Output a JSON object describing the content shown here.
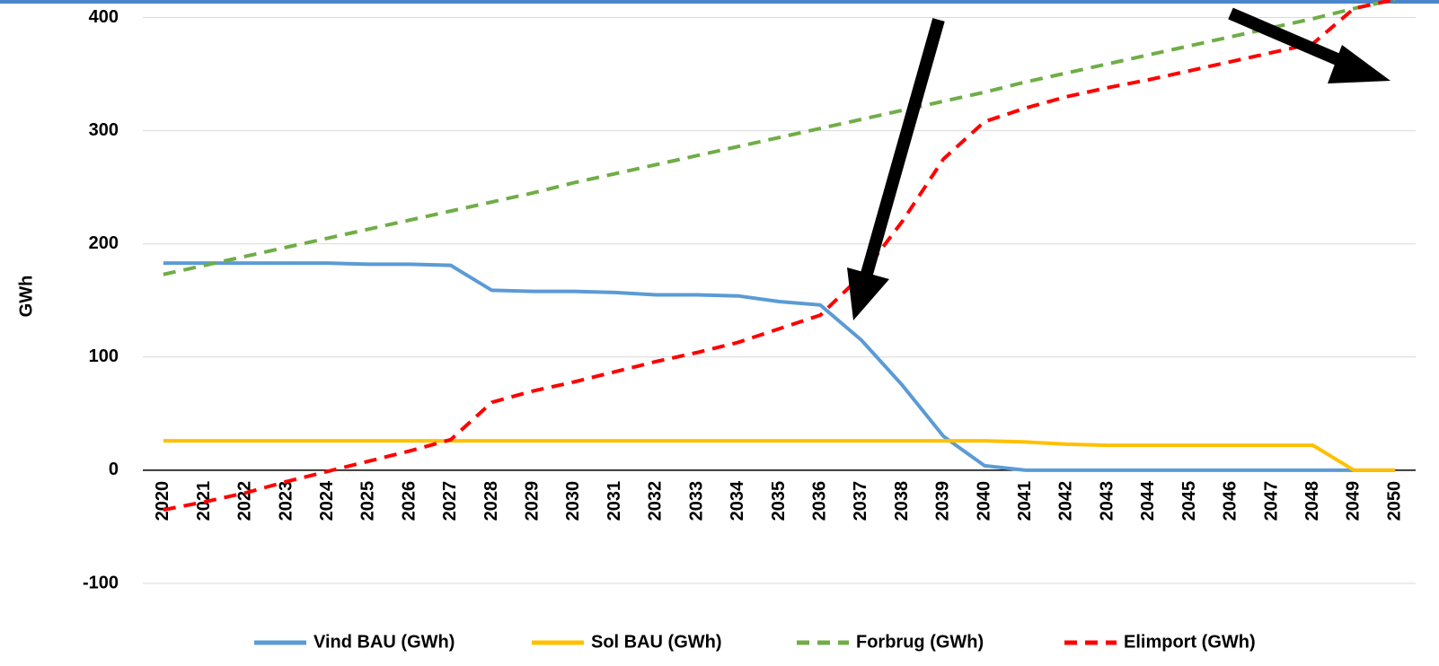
{
  "chart_data": {
    "type": "line",
    "y_label": "GWh",
    "categories": [
      "2020",
      "2021",
      "2022",
      "2023",
      "2024",
      "2025",
      "2026",
      "2027",
      "2028",
      "2029",
      "2030",
      "2031",
      "2032",
      "2033",
      "2034",
      "2035",
      "2036",
      "2037",
      "2038",
      "2039",
      "2040",
      "2041",
      "2042",
      "2043",
      "2044",
      "2045",
      "2046",
      "2047",
      "2048",
      "2049",
      "2050"
    ],
    "series": [
      {
        "name": "Vind BAU (GWh)",
        "color": "#5b9bd5",
        "dashed": false,
        "values": [
          183,
          183,
          183,
          183,
          183,
          182,
          182,
          181,
          159,
          158,
          158,
          157,
          155,
          155,
          154,
          149,
          146,
          115,
          75,
          30,
          4,
          0,
          0,
          0,
          0,
          0,
          0,
          0,
          0,
          0,
          0
        ]
      },
      {
        "name": "Sol BAU (GWh)",
        "color": "#ffc000",
        "dashed": false,
        "values": [
          26,
          26,
          26,
          26,
          26,
          26,
          26,
          26,
          26,
          26,
          26,
          26,
          26,
          26,
          26,
          26,
          26,
          26,
          26,
          26,
          26,
          25,
          23,
          22,
          22,
          22,
          22,
          22,
          22,
          0,
          0
        ]
      },
      {
        "name": "Forbrug (GWh)",
        "color": "#70ad47",
        "dashed": true,
        "values": [
          173,
          181,
          189,
          197,
          205,
          213,
          221,
          229,
          237,
          245,
          254,
          262,
          270,
          278,
          286,
          294,
          302,
          310,
          318,
          326,
          334,
          343,
          351,
          359,
          367,
          375,
          383,
          391,
          399,
          408,
          416
        ]
      },
      {
        "name": "Elimport (GWh)",
        "color": "#ff0000",
        "dashed": true,
        "values": [
          -35,
          -28,
          -20,
          -10,
          -1,
          8,
          17,
          27,
          60,
          70,
          78,
          87,
          96,
          104,
          113,
          125,
          137,
          172,
          220,
          275,
          308,
          320,
          330,
          338,
          345,
          353,
          361,
          369,
          377,
          408,
          416
        ]
      }
    ],
    "ylim": [
      -100,
      500
    ],
    "yticks": [
      -100,
      0,
      100,
      200,
      300,
      400
    ],
    "grid": true,
    "legend": "bottom"
  }
}
